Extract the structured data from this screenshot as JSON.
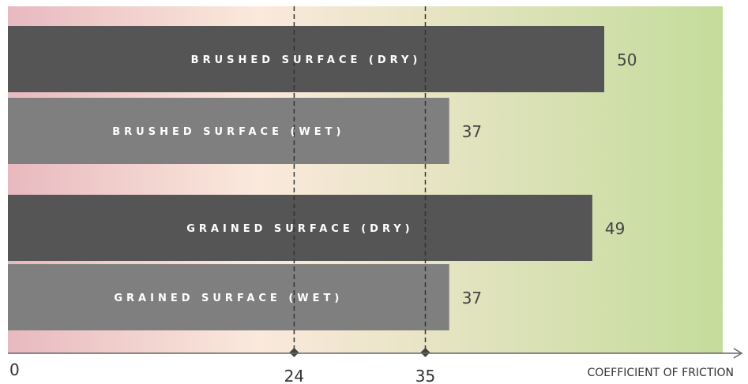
{
  "chart_data": {
    "type": "bar",
    "orientation": "horizontal",
    "categories": [
      "BRUSHED SURFACE (DRY)",
      "BRUSHED SURFACE (WET)",
      "GRAINED SURFACE (DRY)",
      "GRAINED SURFACE (WET)"
    ],
    "values": [
      50,
      37,
      49,
      37
    ],
    "bar_colors": [
      "#555555",
      "#7f7f7f",
      "#555555",
      "#7f7f7f"
    ],
    "xlabel": "COEFFICIENT OF FRICTION",
    "xlim": [
      0,
      60
    ],
    "x_ticks": [
      0,
      24,
      35
    ],
    "reference_lines": [
      24,
      35
    ],
    "background_gradient": [
      "#e8b9c0",
      "#fbe9dc",
      "#c4dc9b"
    ]
  }
}
